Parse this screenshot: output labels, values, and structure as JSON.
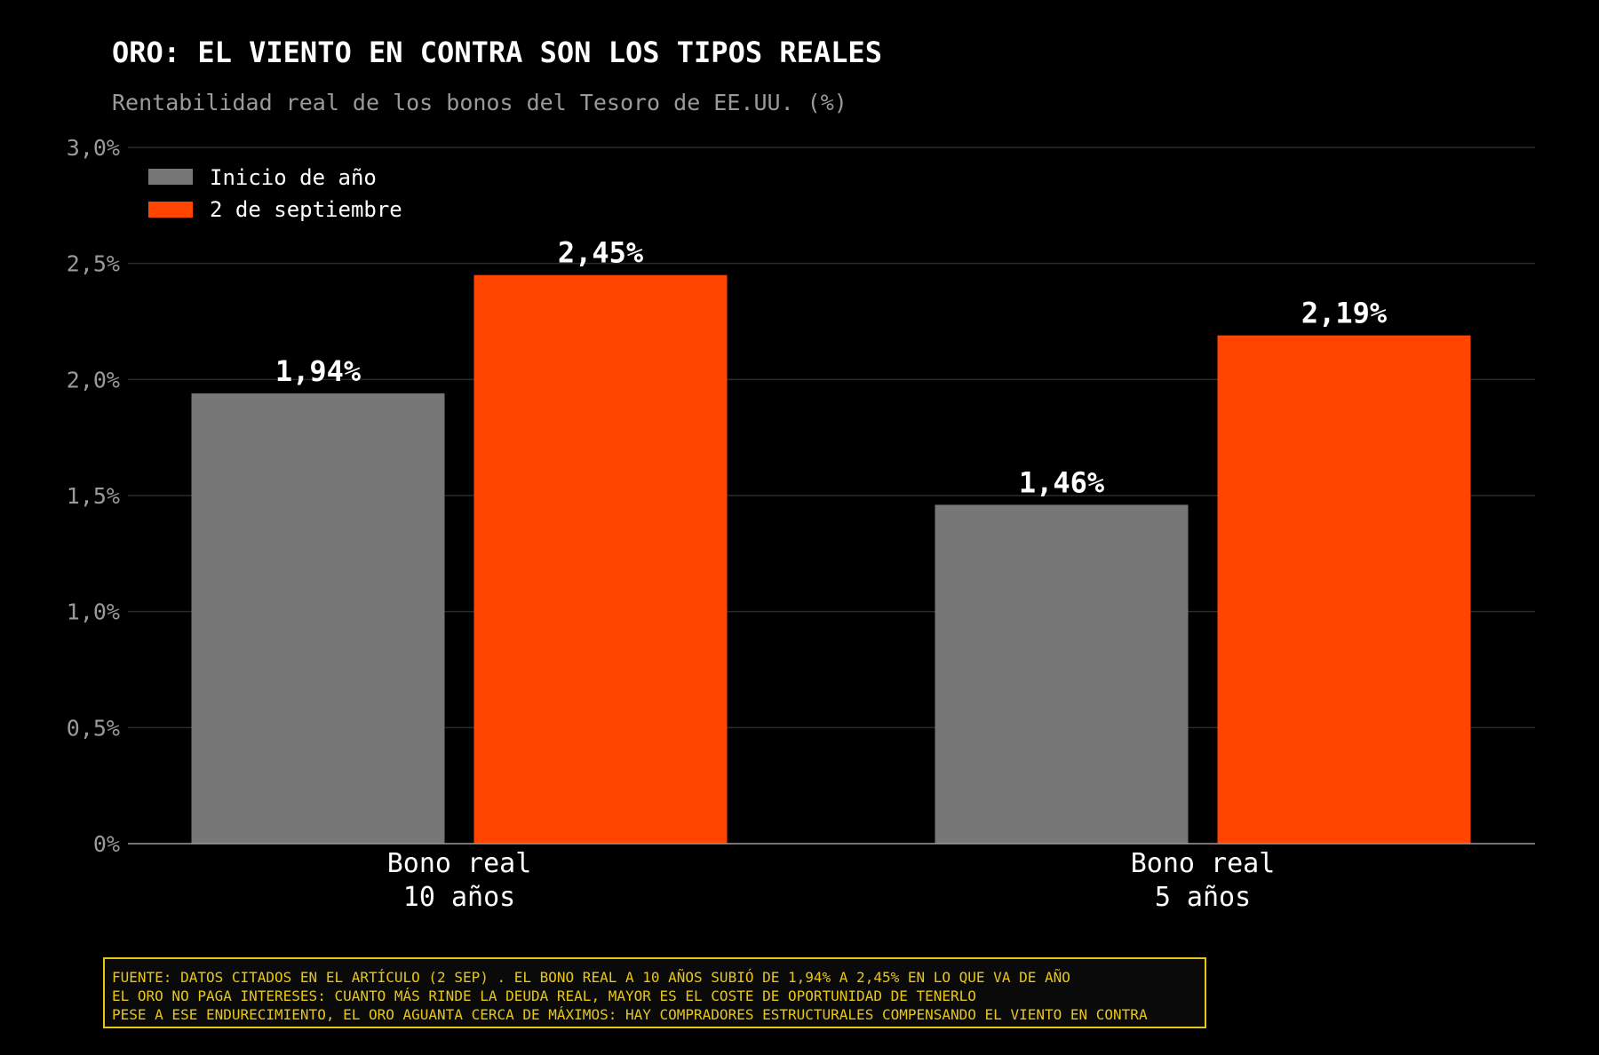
{
  "title": "ORO: EL VIENTO EN CONTRA SON LOS TIPOS REALES",
  "subtitle": "Rentabilidad real de los bonos del Tesoro de EE.UU. (%)",
  "colors": {
    "background": "#000000",
    "series_start": "#777777",
    "series_sep": "#ff4500",
    "grid": "#2b2b2b",
    "axis": "#9a9a9a",
    "footnote": "#e8c619"
  },
  "chart_data": {
    "type": "bar",
    "categories": [
      [
        "Bono real",
        "10 años"
      ],
      [
        "Bono real",
        "5 años"
      ]
    ],
    "series": [
      {
        "name": "Inicio de año",
        "values": [
          1.94,
          1.46
        ],
        "labels": [
          "1,94%",
          "1,46%"
        ],
        "color": "#777777"
      },
      {
        "name": "2 de septiembre",
        "values": [
          2.45,
          2.19
        ],
        "labels": [
          "2,45%",
          "2,19%"
        ],
        "color": "#ff4500"
      }
    ],
    "ylim": [
      0,
      3
    ],
    "yticks": [
      0,
      0.5,
      1,
      1.5,
      2,
      2.5,
      3
    ],
    "ytick_labels": [
      "0%",
      "0,5%",
      "1,0%",
      "1,5%",
      "2,0%",
      "2,5%",
      "3,0%"
    ],
    "grid": true,
    "legend_position": "top-left",
    "xlabel": "",
    "ylabel": ""
  },
  "footnote": {
    "lines": [
      "FUENTE: DATOS CITADOS EN EL ARTÍCULO (2 SEP) . EL BONO REAL A 10 AÑOS SUBIÓ DE 1,94% A 2,45% EN LO QUE VA DE AÑO",
      "EL ORO NO PAGA INTERESES: CUANTO MÁS RINDE LA DEUDA REAL, MAYOR ES EL COSTE DE OPORTUNIDAD DE TENERLO",
      "PESE A ESE ENDURECIMIENTO, EL ORO AGUANTA CERCA DE MÁXIMOS: HAY COMPRADORES ESTRUCTURALES COMPENSANDO EL VIENTO EN CONTRA"
    ]
  }
}
